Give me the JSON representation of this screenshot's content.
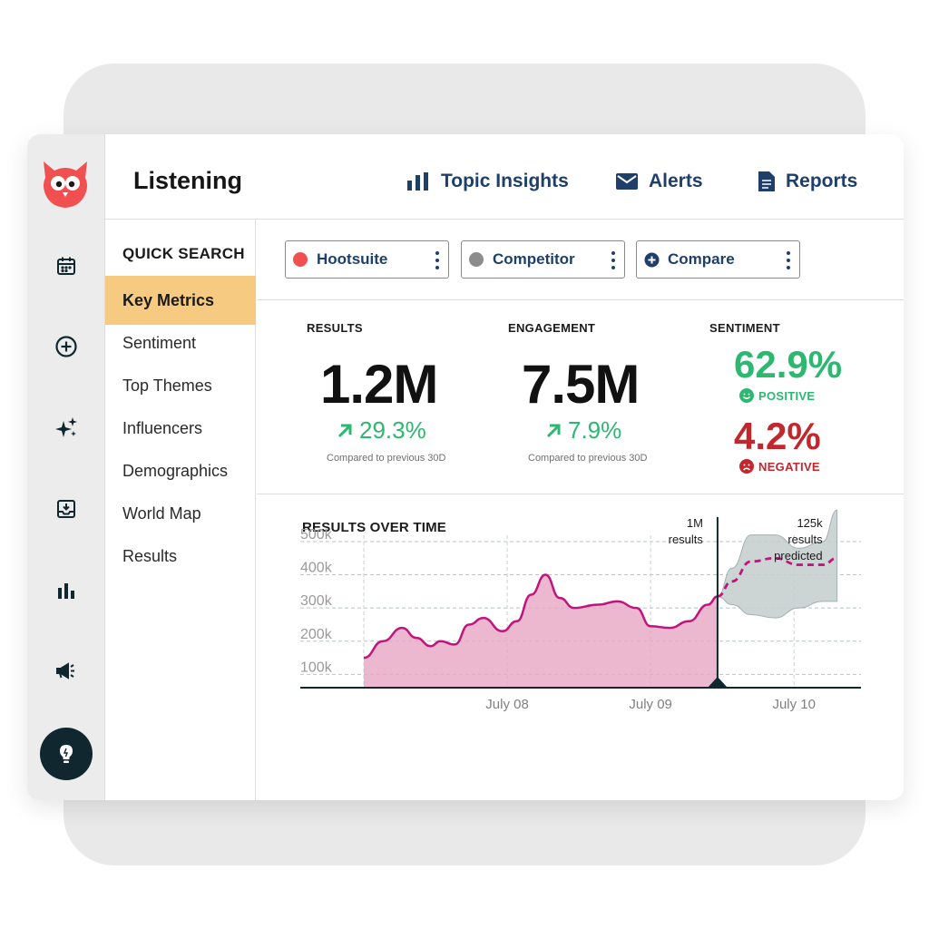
{
  "app": {
    "title": "Listening",
    "nav": [
      {
        "label": "Topic Insights",
        "icon": "bar-chart-icon"
      },
      {
        "label": "Alerts",
        "icon": "envelope-icon"
      },
      {
        "label": "Reports",
        "icon": "document-icon"
      }
    ]
  },
  "rail": {
    "icons": [
      "owl-logo-icon",
      "calendar-icon",
      "plus-circle-icon",
      "sparkle-icon",
      "inbox-icon",
      "bar-chart-icon",
      "megaphone-icon",
      "lightbulb-icon"
    ]
  },
  "quick_search": {
    "title": "QUICK SEARCH",
    "items": [
      {
        "label": "Key Metrics",
        "active": true
      },
      {
        "label": "Sentiment",
        "active": false
      },
      {
        "label": "Top Themes",
        "active": false
      },
      {
        "label": "Influencers",
        "active": false
      },
      {
        "label": "Demographics",
        "active": false
      },
      {
        "label": "World Map",
        "active": false
      },
      {
        "label": "Results",
        "active": false
      }
    ]
  },
  "filters": [
    {
      "label": "Hootsuite",
      "dot_color": "#f0504f"
    },
    {
      "label": "Competitor",
      "dot_color": "#8c8c8c"
    },
    {
      "label": "Compare",
      "icon": "plus-circle-icon"
    }
  ],
  "metrics": {
    "results": {
      "label": "RESULTS",
      "value": "1.2M",
      "change": "29.3%",
      "note": "Compared to previous 30D"
    },
    "engagement": {
      "label": "ENGAGEMENT",
      "value": "7.5M",
      "change": "7.9%",
      "note": "Compared to previous 30D"
    },
    "sentiment": {
      "label": "SENTIMENT",
      "positive": {
        "value": "62.9%",
        "tag": "POSITIVE"
      },
      "negative": {
        "value": "4.2%",
        "tag": "NEGATIVE"
      }
    }
  },
  "colors": {
    "positive": "#2cb870",
    "negative": "#c1272d",
    "nav": "#1f3f6b",
    "active_item": "#f7ca82",
    "series_line": "#c0157c",
    "series_fill": "#e7a6c4",
    "prediction_band": "#c7d0d0"
  },
  "chart_data": {
    "type": "area",
    "title": "RESULTS OVER TIME",
    "xlabel": "",
    "ylabel": "",
    "ylim": [
      60000,
      560000
    ],
    "y_ticks": [
      "100k",
      "200k",
      "300k",
      "400k",
      "500k"
    ],
    "x_ticks": [
      {
        "label": "July 08",
        "t": 1.5
      },
      {
        "label": "July 09",
        "t": 3.0
      },
      {
        "label": "July 10",
        "t": 4.5
      }
    ],
    "xlim": [
      0,
      5.2
    ],
    "grid": true,
    "series": [
      {
        "x": [
          0,
          0.2,
          0.4,
          0.55,
          0.7,
          0.8,
          0.95,
          1.1,
          1.25,
          1.45,
          1.6,
          1.75,
          1.9,
          2.05,
          2.2,
          2.45,
          2.65,
          2.85,
          3.0,
          3.2,
          3.4,
          3.6,
          3.7
        ],
        "y": [
          150000,
          200000,
          240000,
          210000,
          185000,
          200000,
          190000,
          250000,
          270000,
          230000,
          260000,
          340000,
          400000,
          330000,
          300000,
          310000,
          320000,
          300000,
          245000,
          240000,
          260000,
          310000,
          335000
        ]
      },
      {
        "predicted": true,
        "x": [
          3.7,
          3.85,
          4.05,
          4.3,
          4.55,
          4.8,
          4.95
        ],
        "y": [
          335000,
          380000,
          440000,
          450000,
          430000,
          430000,
          450000
        ],
        "band_upper": [
          335000,
          420000,
          520000,
          520000,
          480000,
          500000,
          595000
        ],
        "band_lower": [
          335000,
          310000,
          280000,
          270000,
          300000,
          320000,
          320000
        ]
      }
    ],
    "annotations": [
      {
        "text": [
          "1M",
          "results"
        ],
        "x": 3.7
      },
      {
        "text": [
          "125k",
          "results",
          "predicted"
        ],
        "x": 4.95
      }
    ]
  }
}
